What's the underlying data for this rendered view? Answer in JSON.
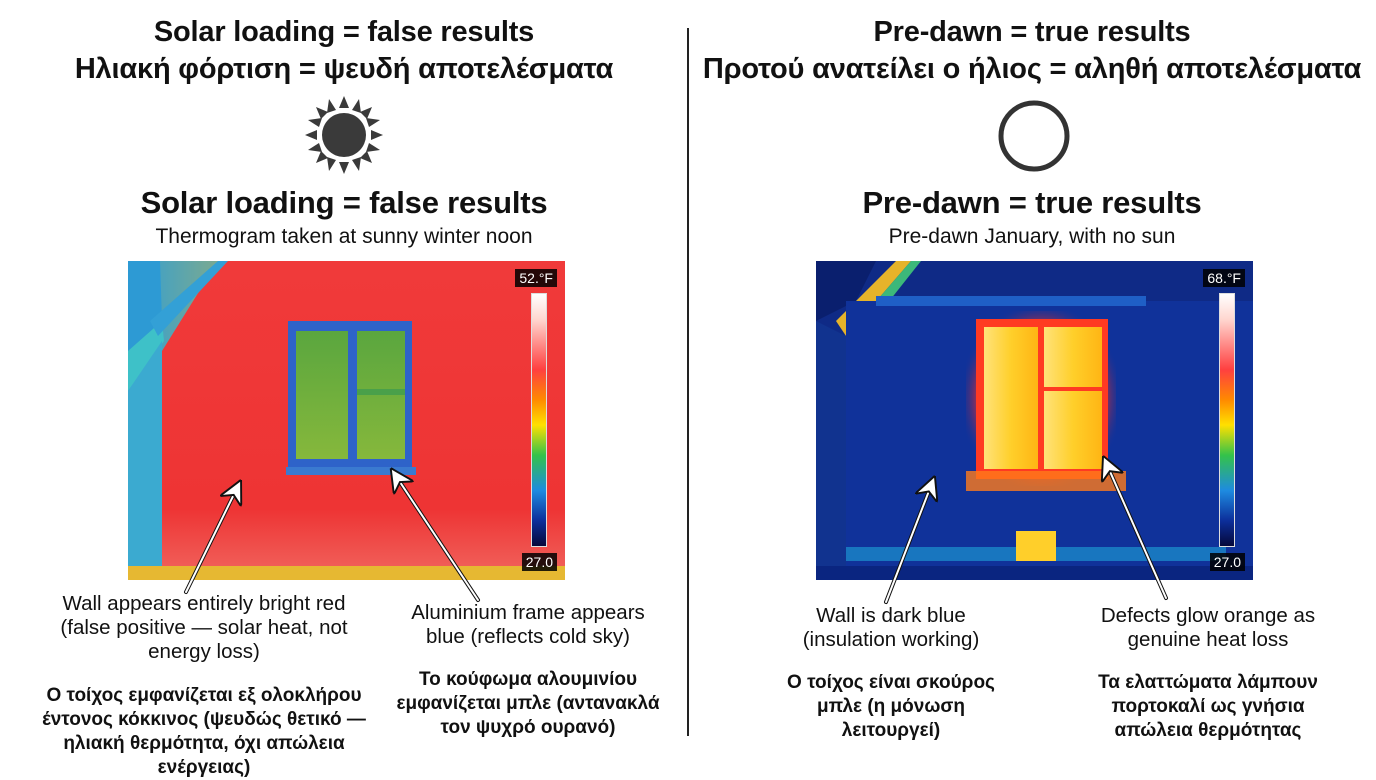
{
  "left": {
    "header_en": "Solar loading = false results",
    "header_el": "Ηλιακή φόρτιση = ψευδή αποτελέσματα",
    "icon": "sun-icon",
    "title": "Solar loading = false results",
    "caption": "Thermogram taken at sunny winter noon",
    "scale": {
      "max": "52.°F",
      "min": "27.0"
    },
    "notes": [
      {
        "en": "Wall appears entirely bright red (false positive — solar heat, not energy loss)",
        "el": "Ο τοίχος εμφανίζεται εξ ολοκλήρου έντονος κόκκινος (ψευδώς θετικό — ηλιακή θερμότητα, όχι απώλεια ενέργειας)"
      },
      {
        "en": "Aluminium frame appears blue (reflects cold sky)",
        "el": "Το κούφωμα αλουμινίου εμφανίζεται μπλε (αντανακλά τον ψυχρό ουρανό)"
      }
    ]
  },
  "right": {
    "header_en": "Pre-dawn = true results",
    "header_el": "Προτού ανατείλει ο ήλιος = αληθή αποτελέσματα",
    "icon": "crescent-moon-icon",
    "title": "Pre-dawn = true results",
    "caption": "Pre-dawn January, with no sun",
    "scale": {
      "max": "68.°F",
      "min": "27.0"
    },
    "notes": [
      {
        "en": "Wall is dark blue (insulation working)",
        "el": "Ο τοίχος είναι σκούρος μπλε (η μόνωση λειτουργεί)"
      },
      {
        "en": "Defects glow orange as genuine heat loss",
        "el": "Τα ελαττώματα λάμπουν πορτοκαλί ως γνήσια απώλεια θερμότητας"
      }
    ]
  },
  "colors": {
    "solar_wall": "#ee3434",
    "predawn_wall": "#10329a",
    "window_glow": "#ffc21a",
    "frame_blue": "#2e63c9"
  }
}
